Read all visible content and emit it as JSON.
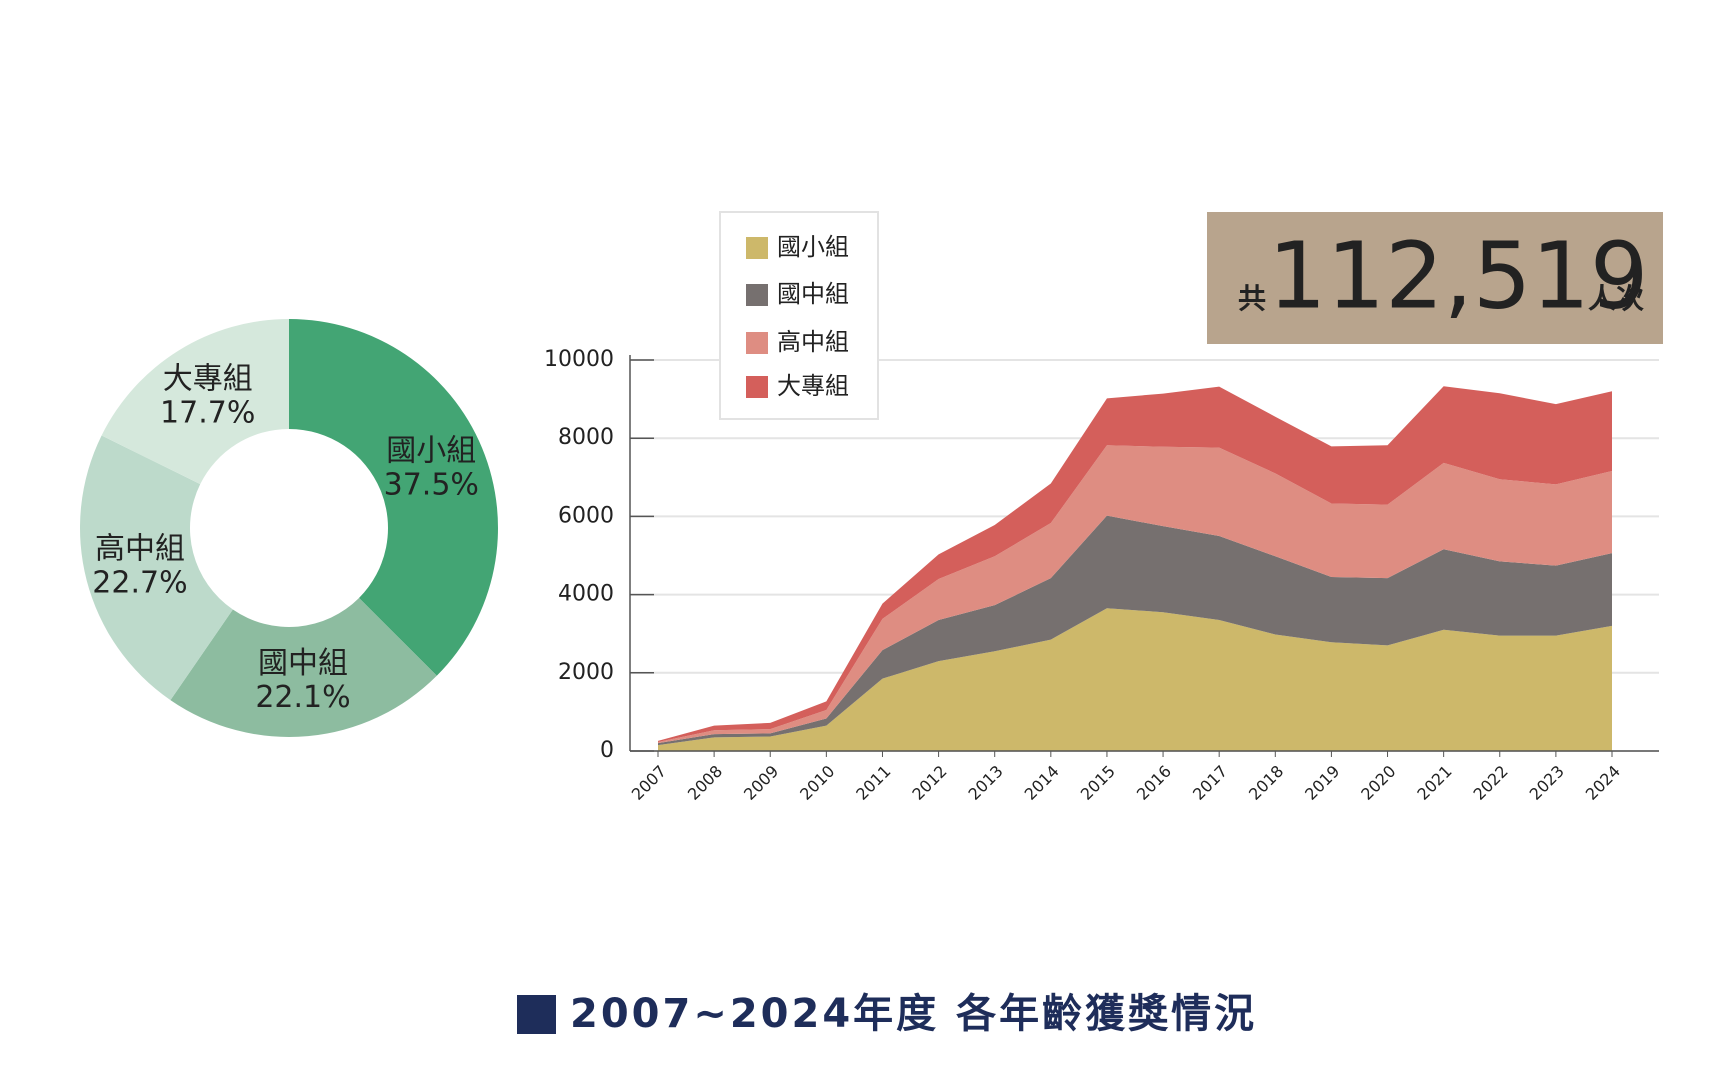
{
  "chart_data": [
    {
      "type": "pie",
      "donut": true,
      "categories": [
        "國小組",
        "國中組",
        "高中組",
        "大專組"
      ],
      "values": [
        37.5,
        22.1,
        22.7,
        17.7
      ],
      "value_labels": [
        "37.5%",
        "22.1%",
        "22.7%",
        "17.7%"
      ],
      "colors": [
        "#43a574",
        "#8dbca0",
        "#bddacb",
        "#d5e8dc"
      ]
    },
    {
      "type": "stacked_area",
      "categories": [
        "2007",
        "2008",
        "2009",
        "2010",
        "2011",
        "2012",
        "2013",
        "2014",
        "2015",
        "2016",
        "2017",
        "2018",
        "2019",
        "2020",
        "2021",
        "2022",
        "2023",
        "2024"
      ],
      "series": [
        {
          "name": "國小組",
          "color": "#cdb86a",
          "values": [
            150,
            350,
            370,
            650,
            1850,
            2300,
            2550,
            2850,
            3650,
            3550,
            3350,
            2980,
            2780,
            2700,
            3100,
            2950,
            2950,
            3200
          ]
        },
        {
          "name": "國中組",
          "color": "#76706f",
          "values": [
            50,
            80,
            80,
            180,
            730,
            1050,
            1180,
            1570,
            2370,
            2200,
            2150,
            2000,
            1670,
            1720,
            2060,
            1900,
            1790,
            1860
          ]
        },
        {
          "name": "高中組",
          "color": "#de8d82",
          "values": [
            30,
            100,
            110,
            220,
            800,
            1050,
            1250,
            1410,
            1800,
            2030,
            2260,
            2120,
            1880,
            1880,
            2210,
            2100,
            2080,
            2100
          ]
        },
        {
          "name": "大專組",
          "color": "#d45f5b",
          "values": [
            30,
            120,
            160,
            220,
            390,
            630,
            800,
            1010,
            1200,
            1360,
            1560,
            1450,
            1460,
            1520,
            1960,
            2200,
            2050,
            2040
          ]
        }
      ],
      "ylim": [
        0,
        10000
      ],
      "yticks": [
        0,
        2000,
        4000,
        6000,
        8000,
        10000
      ],
      "grid": true,
      "legend": "top-left"
    }
  ],
  "summary": {
    "prefix": "共",
    "total": "112,519",
    "unit": "人次"
  },
  "caption": "2007~2024年度 各年齡獲獎情況"
}
